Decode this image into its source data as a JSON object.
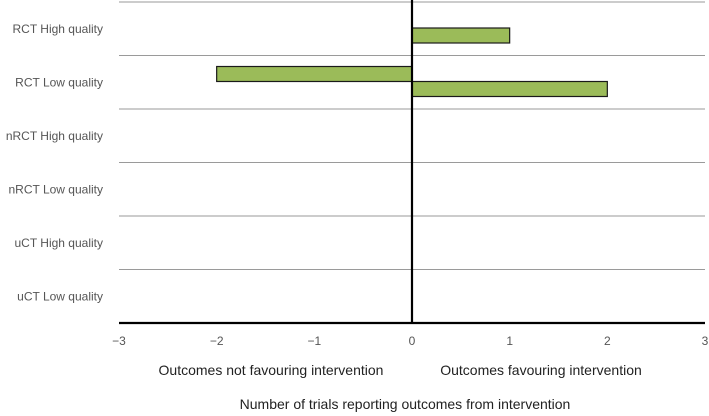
{
  "chart_data": {
    "type": "bar",
    "orientation": "horizontal",
    "categories": [
      "RCT High quality",
      "RCT Low quality",
      "nRCT High quality",
      "nRCT Low quality",
      "uCT High quality",
      "uCT Low quality"
    ],
    "series": [
      {
        "values": [
          1,
          2,
          0,
          0,
          0,
          0
        ]
      },
      {
        "values": [
          0,
          -2,
          0,
          0,
          0,
          0
        ]
      }
    ],
    "xlim": [
      -3,
      3
    ],
    "xticks": [
      -3,
      -2,
      -1,
      0,
      1,
      2,
      3
    ],
    "xtick_labels": [
      "−3",
      "−2",
      "−1",
      "0",
      "1",
      "2",
      "3"
    ],
    "xlabel": "Number of trials reporting outcomes from intervention",
    "left_side_label": "Outcomes not favouring intervention",
    "right_side_label": "Outcomes favouring intervention",
    "grid": "horizontal lines between categories",
    "legend": "none",
    "colors": {
      "bar_fill": "#9bbb59",
      "bar_stroke": "#1a1a1a",
      "grid": "#9a9a9a",
      "axis": "#000000"
    }
  }
}
